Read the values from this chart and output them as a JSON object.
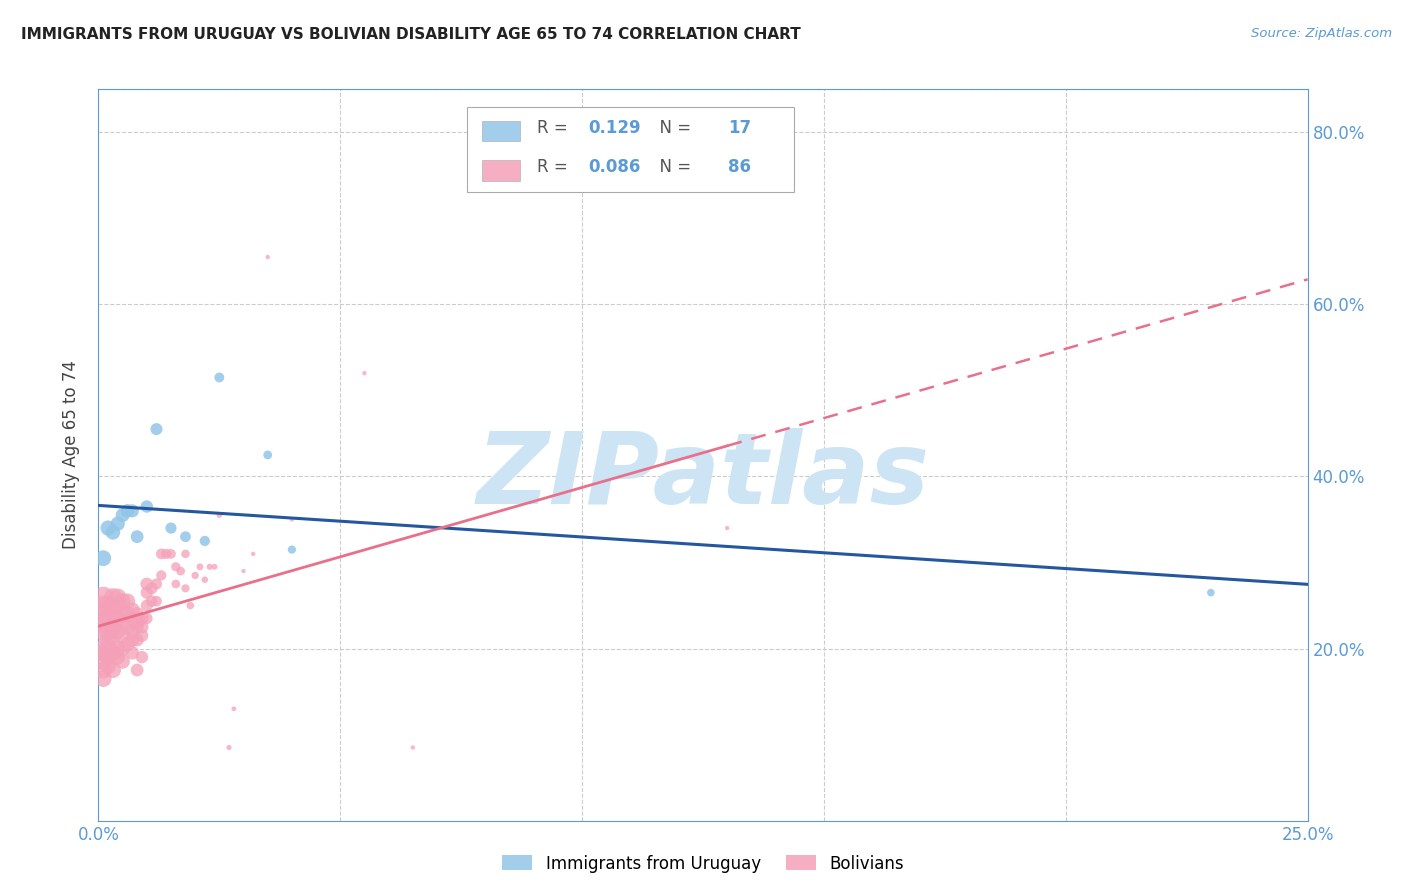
{
  "title": "IMMIGRANTS FROM URUGUAY VS BOLIVIAN DISABILITY AGE 65 TO 74 CORRELATION CHART",
  "source": "Source: ZipAtlas.com",
  "ylabel": "Disability Age 65 to 74",
  "xlim": [
    0,
    0.25
  ],
  "ylim": [
    0.0,
    0.85
  ],
  "title_color": "#222222",
  "source_color": "#5b9bd5",
  "tick_color": "#5b9bd5",
  "watermark": "ZIPatlas",
  "watermark_color": "#cde4f5",
  "r_uruguay": 0.129,
  "n_uruguay": 17,
  "r_bolivia": 0.086,
  "n_bolivia": 86,
  "legend_blue_label": "Immigrants from Uruguay",
  "legend_pink_label": "Bolivians",
  "uruguay_color": "#92c5e8",
  "bolivia_color": "#f4a0b8",
  "trend_blue_color": "#2457a0",
  "trend_pink_color": "#e8708a",
  "uruguay_x": [
    0.001,
    0.002,
    0.003,
    0.004,
    0.005,
    0.006,
    0.007,
    0.008,
    0.01,
    0.012,
    0.015,
    0.018,
    0.022,
    0.025,
    0.035,
    0.04,
    0.23
  ],
  "uruguay_y": [
    0.305,
    0.34,
    0.335,
    0.345,
    0.355,
    0.36,
    0.36,
    0.33,
    0.365,
    0.455,
    0.34,
    0.33,
    0.325,
    0.515,
    0.425,
    0.315,
    0.265
  ],
  "bolivia_x": [
    0.001,
    0.001,
    0.001,
    0.001,
    0.001,
    0.001,
    0.001,
    0.001,
    0.001,
    0.001,
    0.002,
    0.002,
    0.002,
    0.002,
    0.002,
    0.002,
    0.002,
    0.003,
    0.003,
    0.003,
    0.003,
    0.003,
    0.003,
    0.004,
    0.004,
    0.004,
    0.004,
    0.004,
    0.004,
    0.005,
    0.005,
    0.005,
    0.005,
    0.005,
    0.005,
    0.006,
    0.006,
    0.006,
    0.006,
    0.007,
    0.007,
    0.007,
    0.007,
    0.007,
    0.008,
    0.008,
    0.008,
    0.008,
    0.008,
    0.009,
    0.009,
    0.009,
    0.009,
    0.01,
    0.01,
    0.01,
    0.01,
    0.011,
    0.011,
    0.012,
    0.012,
    0.013,
    0.013,
    0.014,
    0.015,
    0.016,
    0.016,
    0.017,
    0.018,
    0.018,
    0.019,
    0.02,
    0.021,
    0.022,
    0.023,
    0.024,
    0.025,
    0.027,
    0.028,
    0.03,
    0.032,
    0.035,
    0.04,
    0.055,
    0.065,
    0.13
  ],
  "bolivia_y": [
    0.26,
    0.25,
    0.24,
    0.23,
    0.22,
    0.2,
    0.195,
    0.185,
    0.175,
    0.165,
    0.25,
    0.235,
    0.22,
    0.21,
    0.2,
    0.19,
    0.18,
    0.26,
    0.245,
    0.225,
    0.215,
    0.195,
    0.175,
    0.26,
    0.25,
    0.235,
    0.22,
    0.2,
    0.19,
    0.255,
    0.24,
    0.23,
    0.215,
    0.2,
    0.185,
    0.255,
    0.24,
    0.225,
    0.205,
    0.245,
    0.235,
    0.22,
    0.21,
    0.195,
    0.24,
    0.23,
    0.225,
    0.21,
    0.175,
    0.235,
    0.225,
    0.215,
    0.19,
    0.275,
    0.265,
    0.25,
    0.235,
    0.27,
    0.255,
    0.275,
    0.255,
    0.31,
    0.285,
    0.31,
    0.31,
    0.295,
    0.275,
    0.29,
    0.31,
    0.27,
    0.25,
    0.285,
    0.295,
    0.28,
    0.295,
    0.295,
    0.355,
    0.085,
    0.13,
    0.29,
    0.31,
    0.655,
    0.35,
    0.52,
    0.085,
    0.34
  ],
  "bolivia_sizes": [
    220,
    200,
    200,
    190,
    180,
    170,
    160,
    155,
    150,
    145,
    180,
    170,
    165,
    155,
    150,
    145,
    140,
    160,
    155,
    150,
    145,
    140,
    135,
    145,
    140,
    135,
    130,
    125,
    120,
    135,
    130,
    125,
    120,
    115,
    110,
    125,
    120,
    115,
    110,
    115,
    110,
    105,
    100,
    95,
    105,
    100,
    95,
    90,
    85,
    95,
    90,
    85,
    80,
    85,
    80,
    75,
    70,
    75,
    70,
    65,
    60,
    60,
    55,
    55,
    50,
    45,
    40,
    40,
    38,
    35,
    30,
    28,
    25,
    22,
    20,
    18,
    16,
    14,
    12,
    10,
    10,
    10,
    10,
    10,
    10,
    10
  ],
  "uruguay_sizes": [
    130,
    120,
    110,
    105,
    100,
    95,
    90,
    85,
    80,
    75,
    65,
    60,
    55,
    50,
    40,
    35,
    30
  ]
}
